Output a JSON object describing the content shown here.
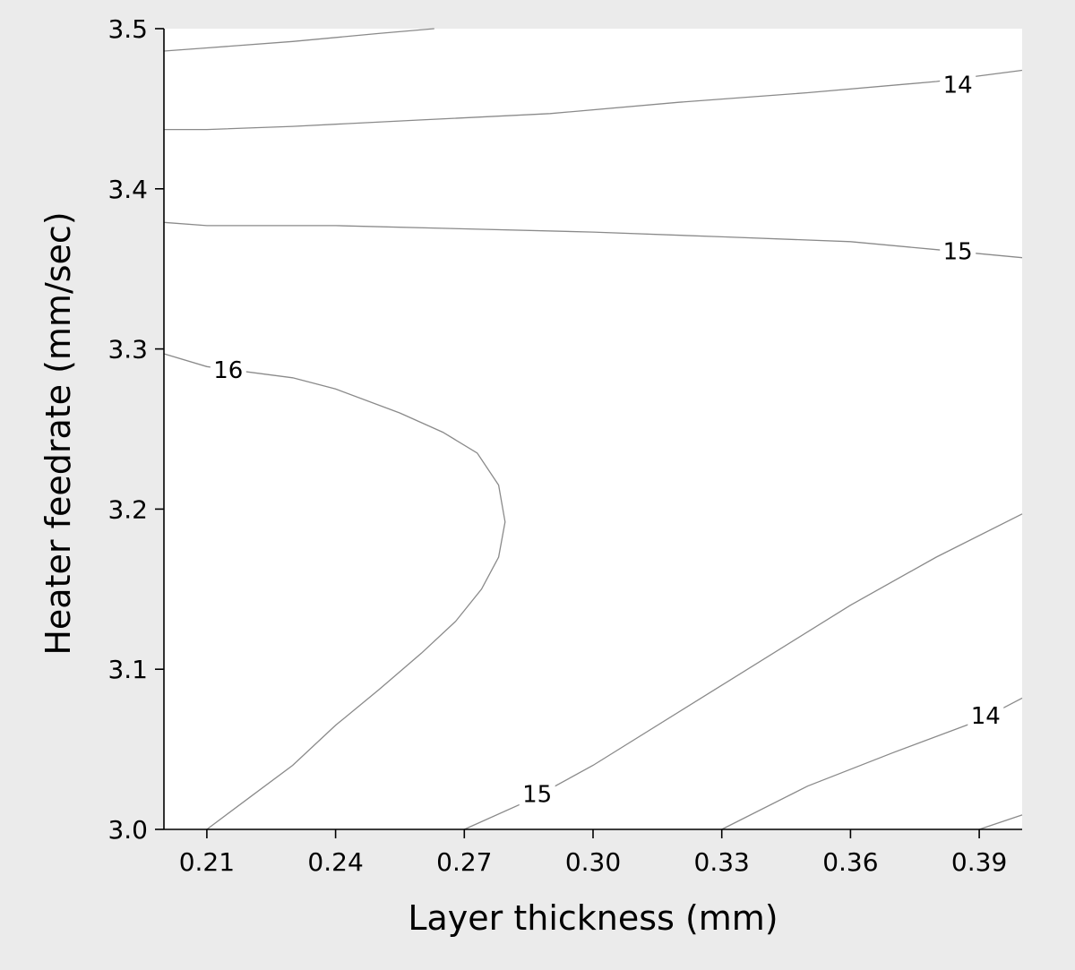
{
  "chart_data": {
    "type": "contour",
    "xlabel": "Layer thickness (mm)",
    "ylabel": "Heater feedrate (mm/sec)",
    "xlim": [
      0.2,
      0.4
    ],
    "ylim": [
      3.0,
      3.5
    ],
    "x_ticks": [
      "0.21",
      "0.24",
      "0.27",
      "0.30",
      "0.33",
      "0.36",
      "0.39"
    ],
    "y_ticks": [
      "3.0",
      "3.1",
      "3.2",
      "3.3",
      "3.4",
      "3.5"
    ],
    "grid": false,
    "contours": [
      {
        "level": "13",
        "labeled": false,
        "points": [
          [
            0.2,
            3.486
          ],
          [
            0.21,
            3.488
          ],
          [
            0.23,
            3.492
          ],
          [
            0.25,
            3.497
          ],
          [
            0.263,
            3.5
          ]
        ]
      },
      {
        "level": "14",
        "labeled": true,
        "points": [
          [
            0.2,
            3.437
          ],
          [
            0.21,
            3.437
          ],
          [
            0.23,
            3.439
          ],
          [
            0.26,
            3.443
          ],
          [
            0.29,
            3.447
          ],
          [
            0.32,
            3.454
          ],
          [
            0.35,
            3.46
          ],
          [
            0.38,
            3.467
          ],
          [
            0.4,
            3.474
          ]
        ]
      },
      {
        "level": "15",
        "labeled": true,
        "points": [
          [
            0.2,
            3.379
          ],
          [
            0.21,
            3.377
          ],
          [
            0.24,
            3.377
          ],
          [
            0.27,
            3.375
          ],
          [
            0.3,
            3.373
          ],
          [
            0.33,
            3.37
          ],
          [
            0.36,
            3.367
          ],
          [
            0.38,
            3.362
          ],
          [
            0.4,
            3.357
          ]
        ]
      },
      {
        "level": "16",
        "labeled": true,
        "points": [
          [
            0.2,
            3.297
          ],
          [
            0.21,
            3.289
          ],
          [
            0.23,
            3.282
          ],
          [
            0.24,
            3.275
          ],
          [
            0.255,
            3.26
          ],
          [
            0.265,
            3.248
          ],
          [
            0.273,
            3.235
          ],
          [
            0.278,
            3.215
          ],
          [
            0.2795,
            3.192
          ],
          [
            0.278,
            3.17
          ],
          [
            0.274,
            3.15
          ],
          [
            0.268,
            3.13
          ],
          [
            0.26,
            3.11
          ],
          [
            0.25,
            3.087
          ],
          [
            0.24,
            3.065
          ],
          [
            0.23,
            3.04
          ],
          [
            0.22,
            3.02
          ],
          [
            0.21,
            3.0
          ]
        ]
      },
      {
        "level": "15",
        "labeled": true,
        "points": [
          [
            0.27,
            3.0
          ],
          [
            0.285,
            3.018
          ],
          [
            0.3,
            3.04
          ],
          [
            0.33,
            3.09
          ],
          [
            0.36,
            3.14
          ],
          [
            0.38,
            3.17
          ],
          [
            0.4,
            3.197
          ]
        ]
      },
      {
        "level": "14",
        "labeled": true,
        "points": [
          [
            0.33,
            3.0
          ],
          [
            0.35,
            3.027
          ],
          [
            0.37,
            3.048
          ],
          [
            0.39,
            3.068
          ],
          [
            0.4,
            3.082
          ]
        ]
      },
      {
        "level": "13",
        "labeled": false,
        "points": [
          [
            0.39,
            3.0
          ],
          [
            0.4,
            3.009
          ]
        ]
      }
    ],
    "contour_labels": [
      {
        "text": "14",
        "x": 0.385,
        "y": 3.465
      },
      {
        "text": "15",
        "x": 0.385,
        "y": 3.361
      },
      {
        "text": "16",
        "x": 0.215,
        "y": 3.287
      },
      {
        "text": "15",
        "x": 0.287,
        "y": 3.022
      },
      {
        "text": "14",
        "x": 0.3915,
        "y": 3.071
      }
    ]
  }
}
